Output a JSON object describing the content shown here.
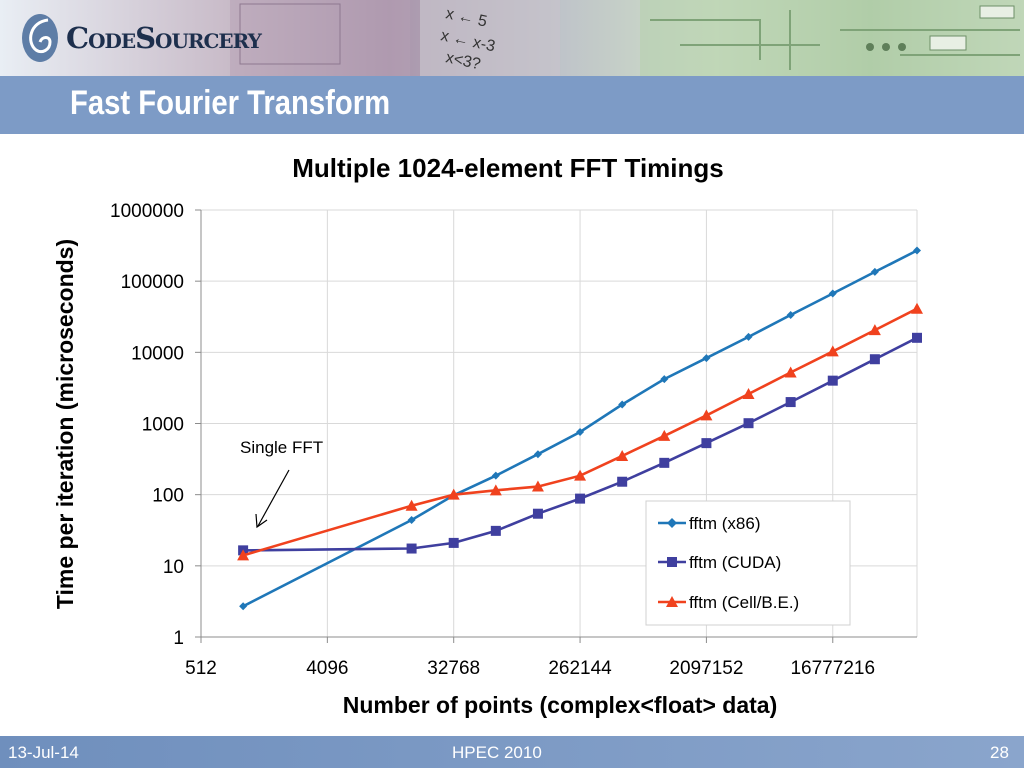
{
  "header": {
    "logo_text": "CodeSourcery",
    "slide_title": "Fast Fourier Transform"
  },
  "footer": {
    "date": "13-Jul-14",
    "event": "HPEC 2010",
    "page_number": "28"
  },
  "colors": {
    "title_bar": "#7d9bc6",
    "x86": "#1f77b8",
    "cuda": "#3f3f9f",
    "cell": "#f0421e"
  },
  "chart_data": {
    "type": "line",
    "title": "Multiple 1024-element FFT Timings",
    "xlabel": "Number of points (complex<float> data)",
    "ylabel": "Time per iteration (microseconds)",
    "x_scale": "log2",
    "y_scale": "log10",
    "xlim": [
      512,
      67108864
    ],
    "ylim": [
      1,
      1000000
    ],
    "x_tick_labels": [
      "512",
      "4096",
      "32768",
      "262144",
      "2097152",
      "16777216"
    ],
    "y_tick_labels": [
      "1",
      "10",
      "100",
      "1000",
      "10000",
      "100000",
      "1000000"
    ],
    "grid": true,
    "legend_position": "bottom-right",
    "x": [
      1024,
      2048,
      4096,
      8192,
      16384,
      32768,
      65536,
      131072,
      262144,
      524288,
      1048576,
      2097152,
      4194304,
      8388608,
      16777216,
      33554432,
      67108864
    ],
    "series": [
      {
        "name": "fftm (x86)",
        "marker": "diamond",
        "color": "#1f77b8",
        "values": [
          2.7,
          null,
          null,
          null,
          44,
          98,
          185,
          370,
          760,
          1850,
          4200,
          8300,
          16500,
          33500,
          67000,
          135000,
          270000
        ]
      },
      {
        "name": "fftm (CUDA)",
        "marker": "square",
        "color": "#3f3f9f",
        "values": [
          16.5,
          null,
          null,
          null,
          17.5,
          21,
          31,
          54,
          88,
          152,
          280,
          530,
          1010,
          2000,
          4000,
          8000,
          16000
        ]
      },
      {
        "name": "fftm (Cell/B.E.)",
        "marker": "triangle",
        "color": "#f0421e",
        "values": [
          14,
          null,
          null,
          null,
          70,
          100,
          115,
          130,
          185,
          350,
          670,
          1300,
          2600,
          5200,
          10300,
          20500,
          41000
        ]
      }
    ],
    "annotations": [
      {
        "text": "Single FFT"
      }
    ]
  }
}
